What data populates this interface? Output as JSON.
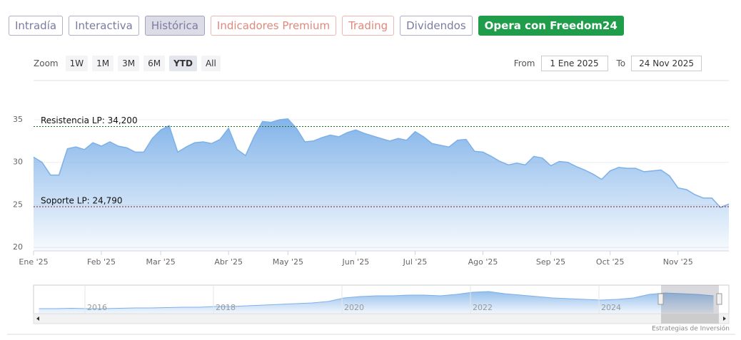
{
  "tabs": [
    {
      "label": "Intradía",
      "color": "#7b7ba3"
    },
    {
      "label": "Interactiva",
      "color": "#7b7ba3"
    },
    {
      "label": "Histórica",
      "color": "#7b7ba3",
      "selected": true
    },
    {
      "label": "Indicadores Premium",
      "color": "#e0887c"
    },
    {
      "label": "Trading",
      "color": "#e0887c"
    },
    {
      "label": "Dividendos",
      "color": "#7b7ba3"
    },
    {
      "label": "Opera con Freedom24",
      "color": "#1f9d4b",
      "filled": true
    }
  ],
  "zoom": {
    "label": "Zoom",
    "buttons": [
      {
        "label": "1W"
      },
      {
        "label": "1M"
      },
      {
        "label": "3M"
      },
      {
        "label": "6M"
      },
      {
        "label": "YTD",
        "selected": true
      },
      {
        "label": "All"
      }
    ]
  },
  "range": {
    "from": {
      "label": "From",
      "value": "1 Ene 2025"
    },
    "to": {
      "label": "To",
      "value": "24 Nov 2025"
    }
  },
  "chart_data": {
    "type": "area",
    "categories": [
      "Ene '25",
      null,
      null,
      null,
      null,
      null,
      null,
      null,
      "Feb '25",
      null,
      null,
      null,
      null,
      null,
      null,
      "Mar '25",
      null,
      null,
      null,
      null,
      null,
      null,
      null,
      "Abr '25",
      null,
      null,
      null,
      null,
      null,
      null,
      "May '25",
      null,
      null,
      null,
      null,
      null,
      null,
      null,
      "Jun '25",
      null,
      null,
      null,
      null,
      null,
      null,
      "Jul '25",
      null,
      null,
      null,
      null,
      null,
      null,
      null,
      "Ago '25",
      null,
      null,
      null,
      null,
      null,
      null,
      null,
      "Sep '25",
      null,
      null,
      null,
      null,
      null,
      null,
      "Oct '25",
      null,
      null,
      null,
      null,
      null,
      null,
      null,
      "Nov '25",
      null,
      null,
      null,
      null,
      null,
      null
    ],
    "series": [
      {
        "color": "#7cb0e8",
        "values": [
          30.6,
          30,
          28.5,
          28.5,
          31.6,
          31.8,
          31.5,
          32.3,
          31.9,
          32.4,
          31.9,
          31.7,
          31.2,
          31.2,
          32.8,
          33.8,
          34.3,
          31.2,
          31.8,
          32.3,
          32.4,
          32.2,
          32.7,
          34,
          31.5,
          30.8,
          33,
          34.8,
          34.7,
          35,
          35.1,
          34,
          32.4,
          32.5,
          32.9,
          33.2,
          33,
          33.5,
          33.8,
          33.4,
          33.1,
          32.8,
          32.5,
          32.8,
          32.6,
          33.6,
          33,
          32.2,
          32,
          31.8,
          32.6,
          32.7,
          31.3,
          31.2,
          30.7,
          30.1,
          29.7,
          29.9,
          29.7,
          30.7,
          30.5,
          29.6,
          30.1,
          30,
          29.5,
          29.1,
          28.6,
          28,
          29,
          29.4,
          29.3,
          29.3,
          28.9,
          29,
          29.1,
          28.4,
          27,
          26.8,
          26.2,
          25.8,
          25.8,
          24.7,
          25.1
        ]
      }
    ],
    "ylim": [
      19.6,
      39.6
    ],
    "yticks": [
      20,
      25,
      30,
      35
    ],
    "grid": true,
    "reference_lines": [
      {
        "label": "Resistencia LP: 34,200",
        "value": 34.2,
        "color": "#1d6b1d"
      },
      {
        "label": "Soporte LP: 24,790",
        "value": 24.79,
        "color": "#7a1f2b"
      }
    ]
  },
  "navigator": {
    "categories": [
      null,
      null,
      null,
      "2016",
      null,
      null,
      null,
      null,
      null,
      null,
      null,
      "2018",
      null,
      null,
      null,
      null,
      null,
      null,
      null,
      "2020",
      null,
      null,
      null,
      null,
      null,
      null,
      null,
      "2022",
      null,
      null,
      null,
      null,
      null,
      null,
      null,
      "2024",
      null,
      null,
      null,
      null,
      null,
      null,
      null
    ],
    "values": [
      7,
      7,
      7.5,
      7,
      7,
      7.5,
      8,
      8,
      8.5,
      9,
      9,
      10,
      10,
      11,
      12,
      13,
      14,
      15,
      17,
      22,
      24,
      25,
      25,
      26,
      26,
      25,
      27,
      30,
      31,
      28,
      26,
      24,
      22,
      21,
      20,
      19,
      20,
      22,
      27,
      29,
      28,
      27,
      25
    ],
    "ylim": [
      0,
      40
    ],
    "color": "#7cb0e8"
  },
  "credit": "Estrategias de Inversión"
}
